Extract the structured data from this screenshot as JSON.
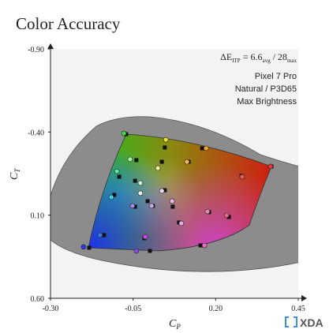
{
  "chart_data": {
    "type": "scatter",
    "title": "Color Accuracy",
    "x_label": {
      "main": "C",
      "sub": "P"
    },
    "y_label": {
      "main": "C",
      "sub": "T"
    },
    "xlim": [
      -0.3,
      0.45
    ],
    "ylim": [
      -0.9,
      0.6
    ],
    "y_inverted": true,
    "xticks": [
      {
        "value": -0.3,
        "label": "-0.30"
      },
      -0.05,
      {
        "value": 0.2,
        "label": "0.20"
      },
      0.45
    ],
    "yticks": [
      {
        "value": -0.9,
        "label": "-0.90"
      },
      {
        "value": -0.4,
        "label": "-0.40"
      },
      {
        "value": 0.1,
        "label": "0.10"
      },
      {
        "value": 0.6,
        "label": "0.60"
      }
    ],
    "annotation": {
      "lead": "ΔE",
      "lead_sub": "ITP",
      "avg_text": " = 6.6",
      "avg_sub": "avg",
      "max_text": " / 28",
      "max_sub": "max"
    },
    "notes": [
      "Pixel 7 Pro",
      "Natural / P3D65",
      "Max Brightness"
    ],
    "series": [
      {
        "marker": "circle",
        "x": [
          -0.078,
          0.049,
          0.171,
          0.366,
          -0.2,
          0.166,
          -0.04,
          -0.013,
          -0.099,
          -0.116,
          -0.15,
          0.025,
          0.113,
          0.28,
          0.233,
          0.096,
          0.175,
          -0.028,
          0.037,
          -0.052,
          0.006,
          0.068,
          -0.028,
          -0.059
        ],
        "y": [
          -0.392,
          -0.354,
          -0.302,
          -0.193,
          0.291,
          0.282,
          0.315,
          0.23,
          -0.164,
          -0.008,
          0.22,
          -0.183,
          -0.221,
          -0.131,
          0.101,
          0.149,
          0.078,
          -0.032,
          -0.046,
          0.044,
          0.044,
          0.016,
          -0.093,
          -0.236
        ],
        "colors": [
          "#3ee03e",
          "#e8e82a",
          "#f4a428",
          "#e83838",
          "#2838f0",
          "#f466c8",
          "#8848ec",
          "#c848e8",
          "#58e8a8",
          "#48c8ec",
          "#3878ec",
          "#f4f4a8",
          "#f4b458",
          "#f05858",
          "#e86888",
          "#e8a8e8",
          "#e888a8",
          "#ececec",
          "#e8d8f4",
          "#a888ec",
          "#c8a8ec",
          "#e8b8e8",
          "#c8f4d8",
          "#a8f4a8"
        ]
      },
      {
        "marker": "square",
        "color": "#111111",
        "x": [
          -0.071,
          0.046,
          0.159,
          0.369,
          -0.183,
          0.154,
          0.001,
          -0.016,
          -0.092,
          -0.107,
          -0.138,
          0.037,
          0.118,
          0.278,
          0.24,
          0.089,
          0.18,
          -0.006,
          0.046,
          -0.044,
          0.01,
          0.07,
          -0.044,
          -0.04
        ],
        "y": [
          -0.387,
          -0.307,
          -0.302,
          -0.193,
          0.296,
          0.282,
          0.315,
          0.239,
          -0.131,
          -0.022,
          0.22,
          -0.221,
          -0.221,
          -0.136,
          0.111,
          0.144,
          0.082,
          0.016,
          -0.05,
          0.049,
          0.044,
          0.049,
          -0.107,
          -0.231
        ]
      }
    ]
  },
  "brand": "XDA"
}
